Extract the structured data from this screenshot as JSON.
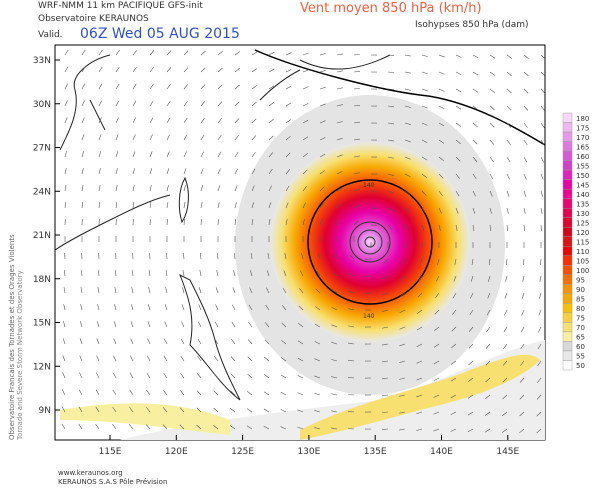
{
  "header": {
    "model": "WRF-NMM 11 km PACIFIQUE   GFS-init",
    "observatory": "Observatoire KERAUNOS",
    "valid_prefix": "Valid.",
    "valid_time": "06Z Wed 05 AUG 2015",
    "field": "Vent moyen 850 hPa (km/h)",
    "contours": "Isohypses 850 hPa (dam)"
  },
  "side_text": [
    "Observatoire Francais des Tornades et des Orages Violents",
    "Tornado and Severe Storm Network Observatory"
  ],
  "footer": {
    "site": "www.keraunos.org",
    "company": "KERAUNOS S.A.S Pôle Prévision"
  },
  "latitudes": [
    "33N",
    "30N",
    "27N",
    "24N",
    "21N",
    "18N",
    "15N",
    "12N",
    "9N"
  ],
  "longitudes": [
    "115E",
    "120E",
    "125E",
    "130E",
    "135E",
    "140E",
    "145E"
  ],
  "contour_labels": [
    "140",
    "140"
  ],
  "colorbar": [
    {
      "value": 180,
      "color": "#f8d8f8"
    },
    {
      "value": 175,
      "color": "#f0b8f0"
    },
    {
      "value": 170,
      "color": "#e898e8"
    },
    {
      "value": 165,
      "color": "#e078e0"
    },
    {
      "value": 160,
      "color": "#d858d8"
    },
    {
      "value": 155,
      "color": "#d040c8"
    },
    {
      "value": 150,
      "color": "#e020c0"
    },
    {
      "value": 145,
      "color": "#e800a8"
    },
    {
      "value": 140,
      "color": "#f00090"
    },
    {
      "value": 135,
      "color": "#f00070"
    },
    {
      "value": 130,
      "color": "#e80050"
    },
    {
      "value": 125,
      "color": "#e00030"
    },
    {
      "value": 120,
      "color": "#d80018"
    },
    {
      "value": 115,
      "color": "#e01010"
    },
    {
      "value": 110,
      "color": "#f00000"
    },
    {
      "value": 105,
      "color": "#f83000"
    },
    {
      "value": 100,
      "color": "#f85000"
    },
    {
      "value": 95,
      "color": "#f87000"
    },
    {
      "value": 90,
      "color": "#f89000"
    },
    {
      "value": 85,
      "color": "#f8a800"
    },
    {
      "value": 80,
      "color": "#f8c000"
    },
    {
      "value": 75,
      "color": "#f8d040"
    },
    {
      "value": 70,
      "color": "#f8e070"
    },
    {
      "value": 65,
      "color": "#f8f0a0"
    },
    {
      "value": 60,
      "color": "#d8d8d8"
    },
    {
      "value": 55,
      "color": "#e8e8e8"
    },
    {
      "value": 50,
      "color": "#ffffff"
    }
  ]
}
